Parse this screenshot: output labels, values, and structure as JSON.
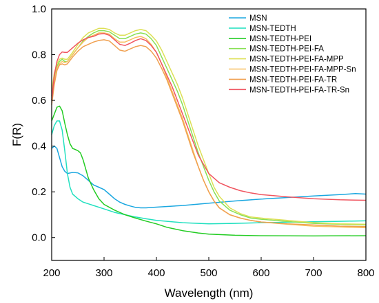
{
  "chart_data": {
    "type": "line",
    "xlabel": "Wavelength (nm)",
    "ylabel": "F(R)",
    "xlim": [
      200,
      800
    ],
    "ylim": [
      -0.1,
      1.0
    ],
    "x_ticks": [
      200,
      300,
      400,
      500,
      600,
      700,
      800
    ],
    "y_ticks": [
      0.0,
      0.2,
      0.4,
      0.6,
      0.8,
      1.0
    ],
    "x_tick_labels": [
      "200",
      "300",
      "400",
      "500",
      "600",
      "700",
      "800"
    ],
    "y_tick_labels": [
      "0.0",
      "0.2",
      "0.4",
      "0.6",
      "0.8",
      "1.0"
    ],
    "grid": false,
    "legend_position": "top-right",
    "series": [
      {
        "name": "MSN",
        "color": "#1aa7e0",
        "points": [
          [
            200,
            0.39
          ],
          [
            205,
            0.4
          ],
          [
            210,
            0.39
          ],
          [
            215,
            0.35
          ],
          [
            220,
            0.31
          ],
          [
            225,
            0.29
          ],
          [
            230,
            0.28
          ],
          [
            240,
            0.285
          ],
          [
            250,
            0.283
          ],
          [
            260,
            0.27
          ],
          [
            270,
            0.25
          ],
          [
            280,
            0.23
          ],
          [
            290,
            0.22
          ],
          [
            300,
            0.21
          ],
          [
            310,
            0.19
          ],
          [
            320,
            0.17
          ],
          [
            330,
            0.155
          ],
          [
            340,
            0.145
          ],
          [
            350,
            0.138
          ],
          [
            360,
            0.132
          ],
          [
            370,
            0.13
          ],
          [
            380,
            0.13
          ],
          [
            400,
            0.133
          ],
          [
            450,
            0.14
          ],
          [
            500,
            0.15
          ],
          [
            550,
            0.16
          ],
          [
            600,
            0.168
          ],
          [
            650,
            0.175
          ],
          [
            700,
            0.182
          ],
          [
            750,
            0.188
          ],
          [
            780,
            0.192
          ],
          [
            800,
            0.19
          ]
        ]
      },
      {
        "name": "MSN-TEDTH",
        "color": "#22e0c0",
        "points": [
          [
            200,
            0.45
          ],
          [
            205,
            0.49
          ],
          [
            210,
            0.51
          ],
          [
            215,
            0.51
          ],
          [
            220,
            0.47
          ],
          [
            225,
            0.38
          ],
          [
            230,
            0.28
          ],
          [
            235,
            0.22
          ],
          [
            240,
            0.19
          ],
          [
            250,
            0.17
          ],
          [
            260,
            0.155
          ],
          [
            280,
            0.14
          ],
          [
            300,
            0.125
          ],
          [
            320,
            0.11
          ],
          [
            340,
            0.1
          ],
          [
            360,
            0.09
          ],
          [
            380,
            0.082
          ],
          [
            400,
            0.075
          ],
          [
            450,
            0.065
          ],
          [
            480,
            0.062
          ],
          [
            500,
            0.06
          ],
          [
            550,
            0.062
          ],
          [
            600,
            0.065
          ],
          [
            650,
            0.067
          ],
          [
            700,
            0.069
          ],
          [
            750,
            0.071
          ],
          [
            800,
            0.073
          ]
        ]
      },
      {
        "name": "MSN-TEDTH-PEI",
        "color": "#22cc22",
        "points": [
          [
            200,
            0.51
          ],
          [
            205,
            0.54
          ],
          [
            210,
            0.57
          ],
          [
            215,
            0.575
          ],
          [
            220,
            0.555
          ],
          [
            225,
            0.5
          ],
          [
            230,
            0.45
          ],
          [
            235,
            0.41
          ],
          [
            240,
            0.39
          ],
          [
            245,
            0.385
          ],
          [
            250,
            0.38
          ],
          [
            255,
            0.37
          ],
          [
            260,
            0.34
          ],
          [
            265,
            0.3
          ],
          [
            270,
            0.26
          ],
          [
            280,
            0.21
          ],
          [
            290,
            0.17
          ],
          [
            300,
            0.145
          ],
          [
            320,
            0.12
          ],
          [
            340,
            0.1
          ],
          [
            360,
            0.085
          ],
          [
            380,
            0.072
          ],
          [
            400,
            0.06
          ],
          [
            420,
            0.045
          ],
          [
            450,
            0.03
          ],
          [
            480,
            0.02
          ],
          [
            500,
            0.015
          ],
          [
            550,
            0.01
          ],
          [
            600,
            0.008
          ],
          [
            700,
            0.007
          ],
          [
            800,
            0.008
          ]
        ]
      },
      {
        "name": "MSN-TEDTH-PEI-FA",
        "color": "#88e055",
        "points": [
          [
            200,
            0.62
          ],
          [
            205,
            0.7
          ],
          [
            210,
            0.75
          ],
          [
            215,
            0.77
          ],
          [
            220,
            0.78
          ],
          [
            225,
            0.77
          ],
          [
            230,
            0.77
          ],
          [
            240,
            0.8
          ],
          [
            250,
            0.83
          ],
          [
            260,
            0.86
          ],
          [
            270,
            0.88
          ],
          [
            280,
            0.895
          ],
          [
            290,
            0.905
          ],
          [
            300,
            0.905
          ],
          [
            310,
            0.9
          ],
          [
            320,
            0.885
          ],
          [
            330,
            0.87
          ],
          [
            340,
            0.87
          ],
          [
            350,
            0.88
          ],
          [
            360,
            0.89
          ],
          [
            370,
            0.895
          ],
          [
            380,
            0.89
          ],
          [
            390,
            0.87
          ],
          [
            400,
            0.84
          ],
          [
            410,
            0.79
          ],
          [
            420,
            0.74
          ],
          [
            430,
            0.69
          ],
          [
            440,
            0.64
          ],
          [
            450,
            0.58
          ],
          [
            460,
            0.51
          ],
          [
            470,
            0.44
          ],
          [
            480,
            0.37
          ],
          [
            490,
            0.31
          ],
          [
            500,
            0.25
          ],
          [
            510,
            0.2
          ],
          [
            520,
            0.16
          ],
          [
            540,
            0.12
          ],
          [
            560,
            0.1
          ],
          [
            580,
            0.085
          ],
          [
            600,
            0.08
          ],
          [
            650,
            0.07
          ],
          [
            700,
            0.062
          ],
          [
            750,
            0.058
          ],
          [
            800,
            0.055
          ]
        ]
      },
      {
        "name": "MSN-TEDTH-PEI-FA-MPP",
        "color": "#dde055",
        "points": [
          [
            200,
            0.64
          ],
          [
            205,
            0.72
          ],
          [
            210,
            0.76
          ],
          [
            215,
            0.78
          ],
          [
            220,
            0.785
          ],
          [
            225,
            0.78
          ],
          [
            230,
            0.78
          ],
          [
            240,
            0.81
          ],
          [
            250,
            0.845
          ],
          [
            260,
            0.875
          ],
          [
            270,
            0.895
          ],
          [
            280,
            0.905
          ],
          [
            290,
            0.915
          ],
          [
            300,
            0.915
          ],
          [
            310,
            0.91
          ],
          [
            320,
            0.895
          ],
          [
            330,
            0.885
          ],
          [
            340,
            0.885
          ],
          [
            350,
            0.895
          ],
          [
            360,
            0.905
          ],
          [
            370,
            0.91
          ],
          [
            380,
            0.905
          ],
          [
            390,
            0.885
          ],
          [
            400,
            0.86
          ],
          [
            410,
            0.82
          ],
          [
            420,
            0.77
          ],
          [
            430,
            0.72
          ],
          [
            440,
            0.67
          ],
          [
            450,
            0.61
          ],
          [
            460,
            0.54
          ],
          [
            470,
            0.47
          ],
          [
            480,
            0.4
          ],
          [
            490,
            0.34
          ],
          [
            500,
            0.28
          ],
          [
            510,
            0.22
          ],
          [
            520,
            0.18
          ],
          [
            540,
            0.13
          ],
          [
            560,
            0.105
          ],
          [
            580,
            0.09
          ],
          [
            600,
            0.085
          ],
          [
            650,
            0.075
          ],
          [
            700,
            0.065
          ],
          [
            750,
            0.06
          ],
          [
            800,
            0.058
          ]
        ]
      },
      {
        "name": "MSN-TEDTH-PEI-FA-MPP-Sn",
        "color": "#f8c060",
        "points": [
          [
            200,
            0.6
          ],
          [
            205,
            0.68
          ],
          [
            210,
            0.74
          ],
          [
            215,
            0.76
          ],
          [
            220,
            0.77
          ],
          [
            225,
            0.765
          ],
          [
            230,
            0.77
          ],
          [
            240,
            0.8
          ],
          [
            250,
            0.83
          ],
          [
            260,
            0.855
          ],
          [
            270,
            0.875
          ],
          [
            280,
            0.885
          ],
          [
            290,
            0.895
          ],
          [
            300,
            0.895
          ],
          [
            310,
            0.89
          ],
          [
            320,
            0.87
          ],
          [
            330,
            0.855
          ],
          [
            340,
            0.855
          ],
          [
            350,
            0.865
          ],
          [
            360,
            0.875
          ],
          [
            370,
            0.88
          ],
          [
            380,
            0.87
          ],
          [
            390,
            0.845
          ],
          [
            400,
            0.81
          ],
          [
            410,
            0.76
          ],
          [
            420,
            0.7
          ],
          [
            430,
            0.64
          ],
          [
            440,
            0.58
          ],
          [
            450,
            0.52
          ],
          [
            460,
            0.45
          ],
          [
            470,
            0.38
          ],
          [
            480,
            0.31
          ],
          [
            490,
            0.25
          ],
          [
            500,
            0.2
          ],
          [
            510,
            0.16
          ],
          [
            520,
            0.13
          ],
          [
            540,
            0.1
          ],
          [
            560,
            0.085
          ],
          [
            580,
            0.075
          ],
          [
            600,
            0.068
          ],
          [
            650,
            0.058
          ],
          [
            700,
            0.05
          ],
          [
            750,
            0.046
          ],
          [
            800,
            0.043
          ]
        ]
      },
      {
        "name": "MSN-TEDTH-PEI-FA-TR",
        "color": "#f0a050",
        "points": [
          [
            200,
            0.58
          ],
          [
            205,
            0.67
          ],
          [
            210,
            0.73
          ],
          [
            215,
            0.755
          ],
          [
            220,
            0.76
          ],
          [
            225,
            0.755
          ],
          [
            230,
            0.76
          ],
          [
            240,
            0.79
          ],
          [
            250,
            0.815
          ],
          [
            260,
            0.835
          ],
          [
            270,
            0.845
          ],
          [
            280,
            0.855
          ],
          [
            290,
            0.862
          ],
          [
            300,
            0.865
          ],
          [
            310,
            0.86
          ],
          [
            320,
            0.84
          ],
          [
            330,
            0.82
          ],
          [
            340,
            0.815
          ],
          [
            350,
            0.825
          ],
          [
            360,
            0.835
          ],
          [
            370,
            0.84
          ],
          [
            380,
            0.835
          ],
          [
            390,
            0.815
          ],
          [
            400,
            0.785
          ],
          [
            410,
            0.74
          ],
          [
            420,
            0.69
          ],
          [
            430,
            0.63
          ],
          [
            440,
            0.57
          ],
          [
            450,
            0.51
          ],
          [
            460,
            0.44
          ],
          [
            470,
            0.37
          ],
          [
            480,
            0.31
          ],
          [
            490,
            0.25
          ],
          [
            500,
            0.2
          ],
          [
            510,
            0.16
          ],
          [
            520,
            0.13
          ],
          [
            540,
            0.1
          ],
          [
            560,
            0.085
          ],
          [
            580,
            0.075
          ],
          [
            600,
            0.068
          ],
          [
            650,
            0.06
          ],
          [
            700,
            0.055
          ],
          [
            750,
            0.05
          ],
          [
            800,
            0.048
          ]
        ]
      },
      {
        "name": "MSN-TEDTH-PEI-FA-TR-Sn",
        "color": "#f05560",
        "points": [
          [
            200,
            0.6
          ],
          [
            205,
            0.71
          ],
          [
            210,
            0.77
          ],
          [
            215,
            0.8
          ],
          [
            220,
            0.812
          ],
          [
            225,
            0.81
          ],
          [
            230,
            0.81
          ],
          [
            240,
            0.83
          ],
          [
            250,
            0.85
          ],
          [
            260,
            0.865
          ],
          [
            270,
            0.875
          ],
          [
            280,
            0.88
          ],
          [
            290,
            0.89
          ],
          [
            300,
            0.892
          ],
          [
            310,
            0.885
          ],
          [
            320,
            0.865
          ],
          [
            330,
            0.845
          ],
          [
            340,
            0.84
          ],
          [
            350,
            0.85
          ],
          [
            360,
            0.862
          ],
          [
            370,
            0.87
          ],
          [
            380,
            0.862
          ],
          [
            390,
            0.84
          ],
          [
            400,
            0.81
          ],
          [
            410,
            0.76
          ],
          [
            420,
            0.71
          ],
          [
            430,
            0.66
          ],
          [
            440,
            0.6
          ],
          [
            450,
            0.54
          ],
          [
            460,
            0.48
          ],
          [
            470,
            0.42
          ],
          [
            480,
            0.36
          ],
          [
            490,
            0.32
          ],
          [
            500,
            0.28
          ],
          [
            520,
            0.24
          ],
          [
            540,
            0.22
          ],
          [
            560,
            0.205
          ],
          [
            580,
            0.195
          ],
          [
            600,
            0.188
          ],
          [
            650,
            0.178
          ],
          [
            700,
            0.17
          ],
          [
            750,
            0.165
          ],
          [
            800,
            0.163
          ]
        ]
      }
    ]
  }
}
